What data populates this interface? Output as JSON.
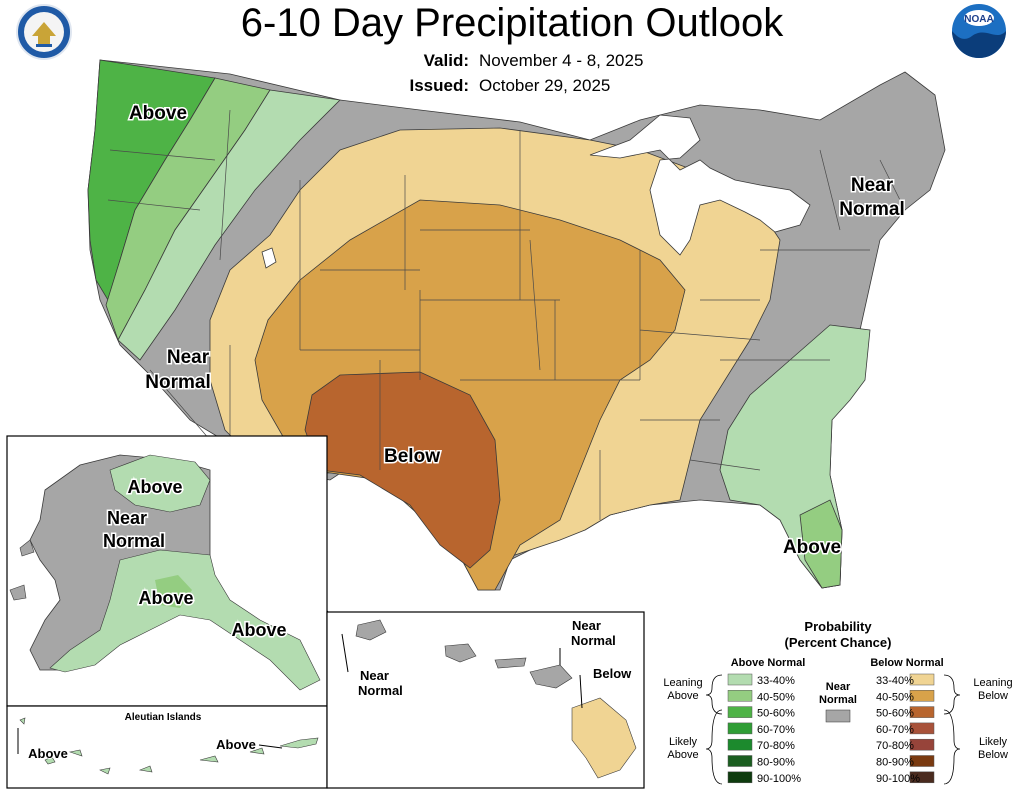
{
  "header": {
    "title": "6-10 Day Precipitation Outlook",
    "valid_label": "Valid:",
    "valid_value": "November 4 - 8, 2025",
    "issued_label": "Issued:",
    "issued_value": "October 29, 2025",
    "left_logo": "department-of-commerce-seal",
    "right_logo": "NOAA"
  },
  "map_labels": {
    "conus_above_nw": "Above",
    "conus_near_normal_w_1": "Near",
    "conus_near_normal_w_2": "Normal",
    "conus_near_normal_ne_1": "Near",
    "conus_near_normal_ne_2": "Normal",
    "conus_below": "Below",
    "conus_above_se": "Above"
  },
  "alaska": {
    "above_north": "Above",
    "near_normal_1": "Near",
    "near_normal_2": "Normal",
    "above_south": "Above",
    "above_southeast": "Above"
  },
  "aleutians": {
    "title": "Aleutian Islands",
    "above_left": "Above",
    "above_right": "Above"
  },
  "hawaii": {
    "near_normal_left_1": "Near",
    "near_normal_left_2": "Normal",
    "near_normal_top_1": "Near",
    "near_normal_top_2": "Normal",
    "below": "Below"
  },
  "legend": {
    "title": "Probability",
    "subtitle": "(Percent Chance)",
    "above_header": "Above Normal",
    "below_header": "Below Normal",
    "near_normal_1": "Near",
    "near_normal_2": "Normal",
    "near_normal_color": "#a6a6a6",
    "leaning_1": "Leaning",
    "above_word": "Above",
    "below_word": "Below",
    "likely_1": "Likely",
    "above_bins": [
      {
        "label": "33-40%",
        "color": "#b3dcb0"
      },
      {
        "label": "40-50%",
        "color": "#94cd81"
      },
      {
        "label": "50-60%",
        "color": "#4eb346"
      },
      {
        "label": "60-70%",
        "color": "#2f9d35"
      },
      {
        "label": "70-80%",
        "color": "#1c8a2d"
      },
      {
        "label": "80-90%",
        "color": "#1b5e20"
      },
      {
        "label": "90-100%",
        "color": "#0e3b0e"
      }
    ],
    "below_bins": [
      {
        "label": "33-40%",
        "color": "#f0d493"
      },
      {
        "label": "40-50%",
        "color": "#d8a24a"
      },
      {
        "label": "50-60%",
        "color": "#b8652e"
      },
      {
        "label": "60-70%",
        "color": "#a8523a"
      },
      {
        "label": "70-80%",
        "color": "#97443a"
      },
      {
        "label": "80-90%",
        "color": "#7a3a10"
      },
      {
        "label": "90-100%",
        "color": "#4a2b1f"
      }
    ]
  },
  "colors": {
    "near_normal": "#a6a6a6",
    "water_lakes": "#ffffff",
    "outline": "#333333"
  }
}
